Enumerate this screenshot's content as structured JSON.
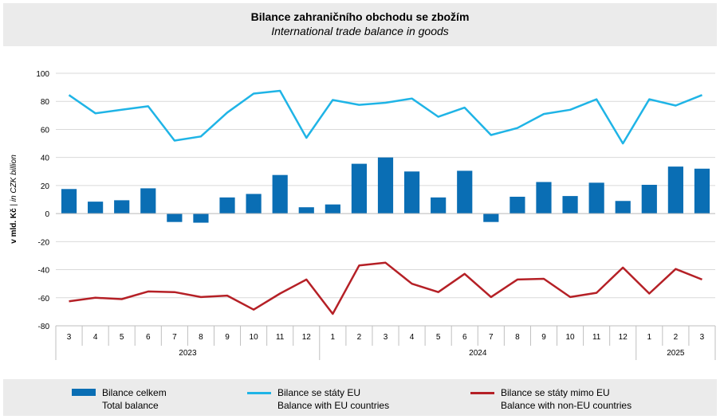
{
  "title": "Bilance zahraničního obchodu se zbožím",
  "subtitle": "International trade balance in goods",
  "chart_data": {
    "type": "bar",
    "ylabel_cz": "v mld. Kč",
    "ylabel_sep": " | ",
    "ylabel_en": "in CZK billion",
    "ylim": [
      -80,
      100
    ],
    "yticks": [
      100,
      80,
      60,
      40,
      20,
      0,
      -20,
      -40,
      -60,
      -80
    ],
    "grid": true,
    "legend_position": "bottom",
    "categories": [
      "3",
      "4",
      "5",
      "6",
      "7",
      "8",
      "9",
      "10",
      "11",
      "12",
      "1",
      "2",
      "3",
      "4",
      "5",
      "6",
      "7",
      "8",
      "9",
      "10",
      "11",
      "12",
      "1",
      "2",
      "3"
    ],
    "year_groups": [
      {
        "label": "2023",
        "start": 0,
        "end": 9
      },
      {
        "label": "2024",
        "start": 10,
        "end": 21
      },
      {
        "label": "2025",
        "start": 22,
        "end": 24
      }
    ],
    "series": [
      {
        "name_cz": "Bilance celkem",
        "name_en": "Total balance",
        "kind": "bar",
        "color": "#0a6eb4",
        "values": [
          17.5,
          8.5,
          9.5,
          18,
          -6,
          -6.5,
          11.5,
          14,
          27.5,
          4.5,
          6.5,
          35.5,
          40,
          30,
          11.5,
          30.5,
          -6,
          12,
          22.5,
          12.5,
          22,
          9,
          20.5,
          33.5,
          32
        ]
      },
      {
        "name_cz": "Bilance se státy EU",
        "name_en": "Balance with EU countries",
        "kind": "line",
        "color": "#1fb4e6",
        "values": [
          84.5,
          71.5,
          74,
          76.5,
          52,
          55,
          72,
          85.5,
          87.5,
          54,
          81,
          77.5,
          79,
          82,
          69,
          75.5,
          56,
          61,
          71,
          74,
          81.5,
          50,
          81.5,
          77,
          84.5
        ]
      },
      {
        "name_cz": "Bilance se státy mimo EU",
        "name_en": "Balance with non-EU countries",
        "kind": "line",
        "color": "#b52026",
        "values": [
          -62.5,
          -60,
          -61,
          -55.5,
          -56,
          -59.5,
          -58.5,
          -68.5,
          -57,
          -47,
          -71.5,
          -37,
          -35,
          -50,
          -56,
          -43,
          -59.5,
          -47,
          -46.5,
          -59.5,
          -56.5,
          -38.5,
          -57,
          -39.5,
          -47
        ]
      }
    ]
  }
}
